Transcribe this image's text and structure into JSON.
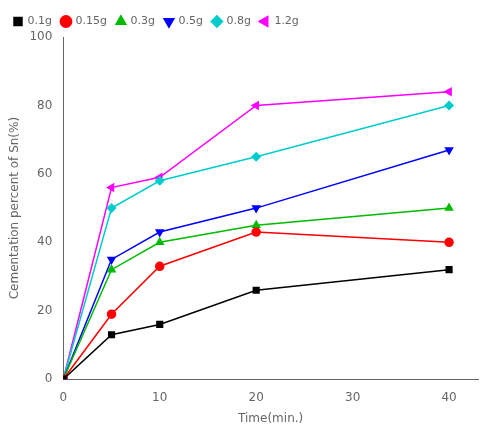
{
  "chart_data": {
    "type": "line",
    "xlabel": "Time(min.)",
    "ylabel": "Cementation percent of Sn(%)",
    "xlim": [
      0,
      43
    ],
    "ylim": [
      0,
      100
    ],
    "xticks": [
      0,
      10,
      20,
      30,
      40
    ],
    "yticks": [
      0,
      20,
      40,
      60,
      80,
      100
    ],
    "grid": false,
    "legend": "upper left",
    "series": [
      {
        "name": "0.1g",
        "color": "#000000",
        "marker": "square",
        "x": [
          0,
          5,
          10,
          20,
          40
        ],
        "values": [
          0,
          13,
          16,
          26,
          32
        ]
      },
      {
        "name": "0.15g",
        "color": "#ff0000",
        "marker": "circle",
        "x": [
          0,
          5,
          10,
          20,
          40
        ],
        "values": [
          0,
          19,
          33,
          43,
          40
        ]
      },
      {
        "name": "0.3g",
        "color": "#00bb00",
        "marker": "triangle_up",
        "x": [
          0,
          5,
          10,
          20,
          40
        ],
        "values": [
          0,
          32,
          40,
          45,
          50
        ]
      },
      {
        "name": "0.5g",
        "color": "#0000ff",
        "marker": "triangle_down",
        "x": [
          0,
          5,
          10,
          20,
          40
        ],
        "values": [
          0,
          35,
          43,
          50,
          67
        ]
      },
      {
        "name": "0.8g",
        "color": "#00cccc",
        "marker": "diamond",
        "x": [
          0,
          5,
          10,
          20,
          40
        ],
        "values": [
          0,
          50,
          58,
          65,
          80
        ]
      },
      {
        "name": "1.2g",
        "color": "#ff00ff",
        "marker": "triangle_left",
        "x": [
          0,
          5,
          10,
          20,
          40
        ],
        "values": [
          0,
          56,
          59,
          80,
          84
        ]
      }
    ]
  }
}
